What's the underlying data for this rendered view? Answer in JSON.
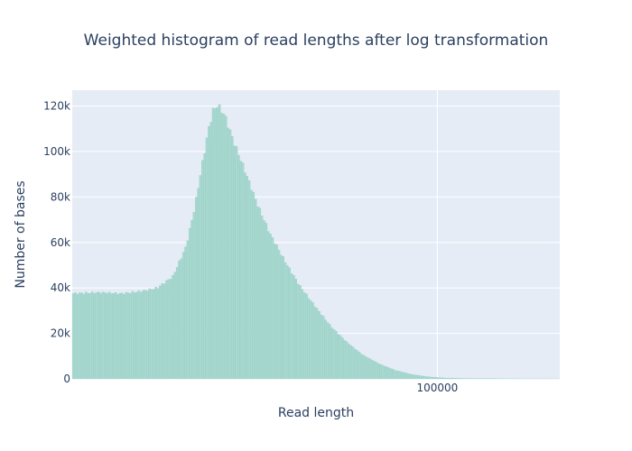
{
  "chart_data": {
    "type": "bar",
    "title": "Weighted histogram of read lengths after log transformation",
    "xlabel": "Read length",
    "ylabel": "Number of bases",
    "x_scale": "log",
    "xlim": [
      1600,
      400000
    ],
    "ylim": [
      0,
      127000
    ],
    "x_ticks": [
      {
        "value": 100000,
        "label": "100000"
      }
    ],
    "y_ticks": [
      {
        "value": 0,
        "label": "0"
      },
      {
        "value": 20000,
        "label": "20k"
      },
      {
        "value": 40000,
        "label": "40k"
      },
      {
        "value": 60000,
        "label": "60k"
      },
      {
        "value": 80000,
        "label": "80k"
      },
      {
        "value": 100000,
        "label": "100k"
      },
      {
        "value": 120000,
        "label": "120k"
      }
    ],
    "grid": true,
    "legend": "none",
    "bar_color": "#a8d8cf",
    "bar_edge_color": "#8cc9bf",
    "plot_background": "#e5ecf6",
    "grid_color": "#ffffff",
    "profile": {
      "x": [
        1600,
        2200,
        2800,
        3500,
        4200,
        5000,
        5800,
        6400,
        7000,
        7500,
        7900,
        8300,
        9000,
        10000,
        11500,
        13000,
        15000,
        18000,
        21000,
        25000,
        30000,
        36000,
        43000,
        52000,
        62000,
        75000,
        90000,
        110000,
        140000,
        180000,
        250000,
        400000
      ],
      "y": [
        37500,
        38000,
        37500,
        38500,
        40000,
        45000,
        58000,
        75000,
        95000,
        110000,
        118000,
        120500,
        116000,
        104000,
        90000,
        77000,
        64000,
        51000,
        41000,
        32000,
        23000,
        16000,
        10500,
        6500,
        3800,
        1900,
        900,
        350,
        150,
        60,
        20,
        0
      ]
    },
    "bins": 230
  }
}
